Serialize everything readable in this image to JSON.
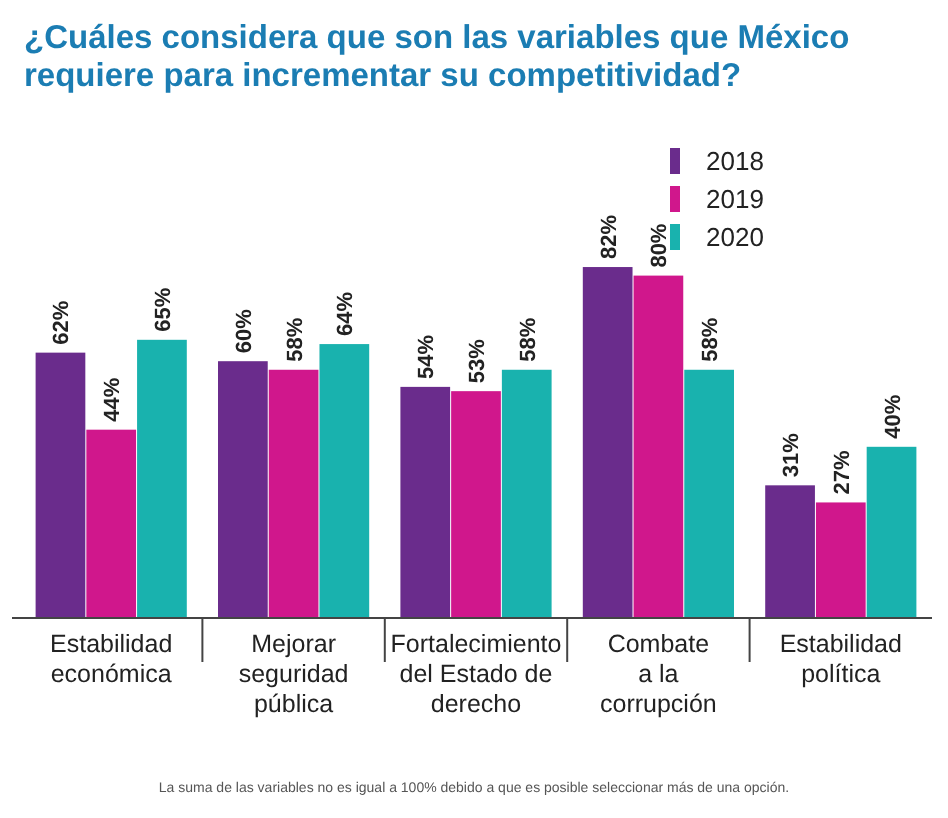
{
  "chart_data": {
    "type": "bar",
    "title": "¿Cuáles considera que son las variables que México requiere para incrementar su competitividad?",
    "categories": [
      "Estabilidad\neconómica",
      "Mejorar\nseguridad\npública",
      "Fortalecimiento\ndel Estado de\nderecho",
      "Combate\na la\ncorrupción",
      "Estabilidad\npolítica"
    ],
    "series": [
      {
        "name": "2018",
        "color": "#6a2c8c",
        "values": [
          62,
          60,
          54,
          82,
          31
        ],
        "value_labels": [
          "62%",
          "60%",
          "54%",
          "82%",
          "31%"
        ]
      },
      {
        "name": "2019",
        "color": "#d0178c",
        "values": [
          44,
          58,
          53,
          80,
          27
        ],
        "value_labels": [
          "44%",
          "58%",
          "53%",
          "80%",
          "27%"
        ]
      },
      {
        "name": "2020",
        "color": "#19b2ae",
        "values": [
          65,
          64,
          58,
          58,
          40
        ],
        "value_labels": [
          "65%",
          "64%",
          "58%",
          "58%",
          "40%"
        ]
      }
    ],
    "ylim": [
      0,
      100
    ],
    "legend": "top right",
    "annotations": [
      "La suma de las variables no es igual a 100% debido a que es posible seleccionar más de una opción."
    ]
  }
}
